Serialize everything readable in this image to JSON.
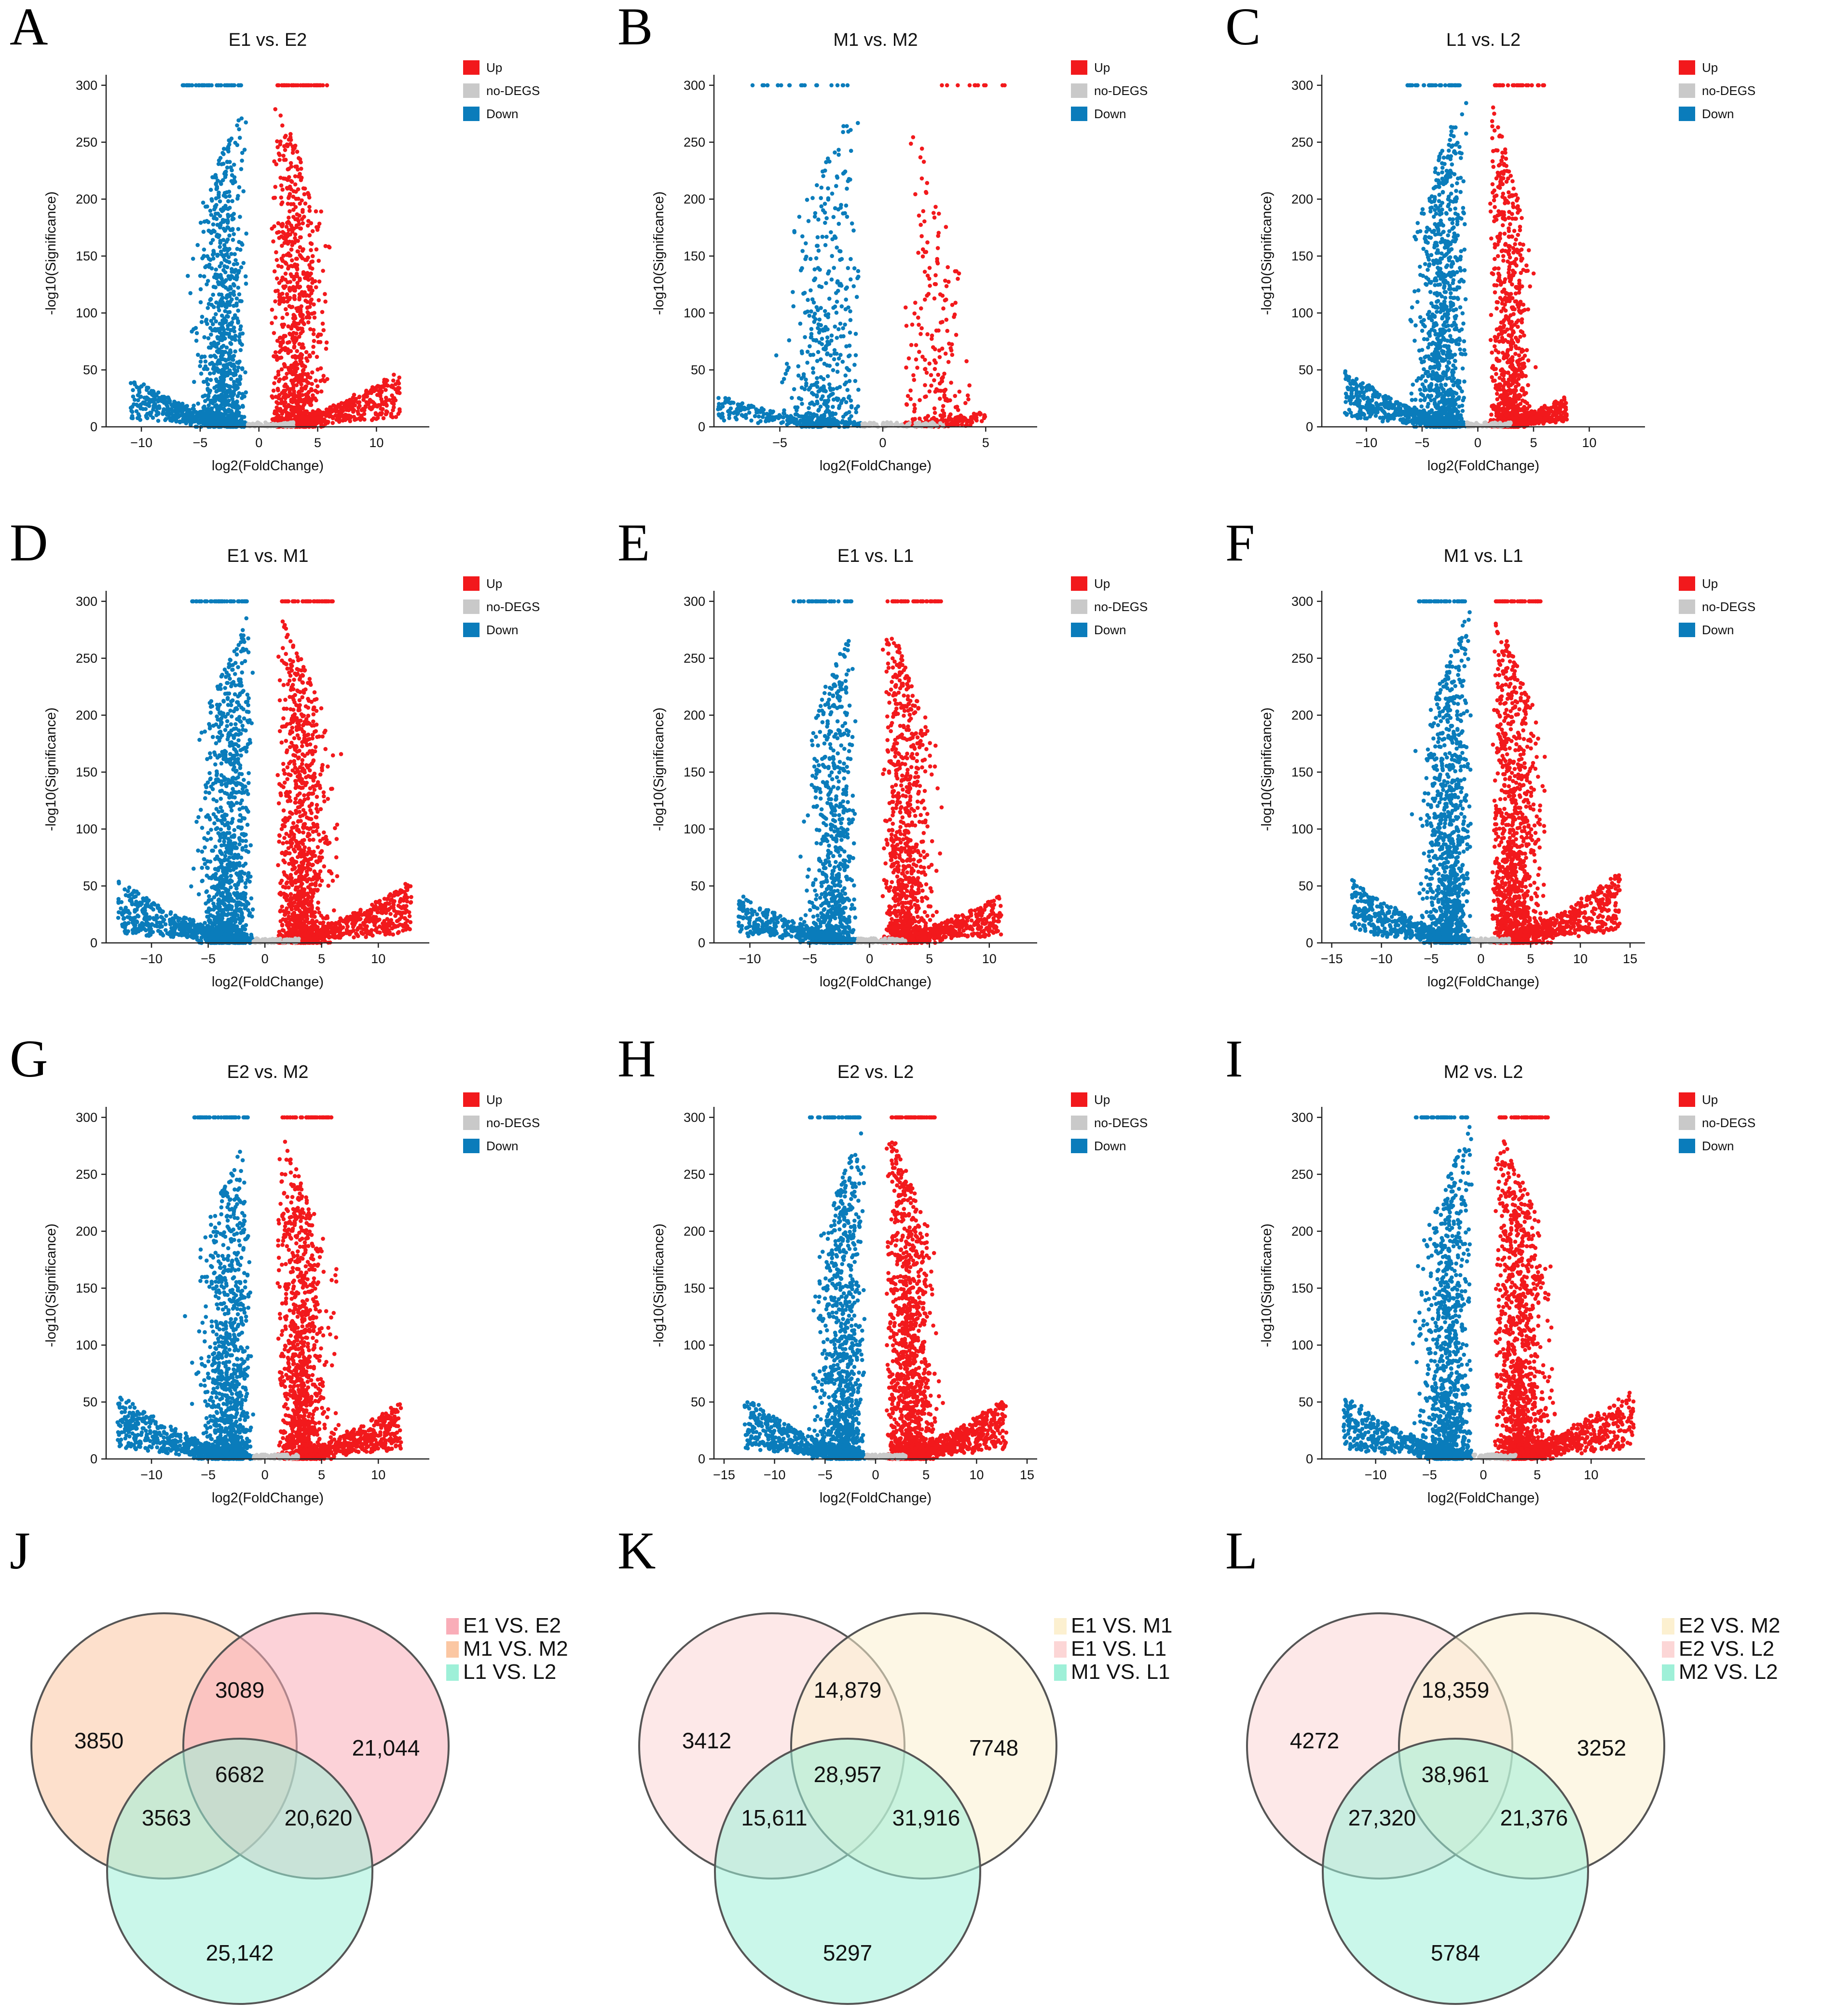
{
  "colors": {
    "up": "#f2191c",
    "down": "#0a7cbb",
    "nodeg": "#c9c9c9",
    "axis": "#222222"
  },
  "chart_data": [
    {
      "type": "scatter",
      "letter": "A",
      "title": "E1 vs. E2",
      "xlabel": "log2(FoldChange)",
      "ylabel": "-log10(Significance)",
      "xlim": [
        -13,
        14.5
      ],
      "ylim": [
        0,
        305
      ],
      "xticks": [
        -10,
        -5,
        0,
        5,
        10
      ],
      "yticks": [
        0,
        50,
        100,
        150,
        200,
        250,
        300
      ],
      "xminus": "−",
      "series": [
        {
          "name": "Up",
          "color": "#f2191c"
        },
        {
          "name": "no-DEGS",
          "color": "#c9c9c9"
        },
        {
          "name": "Down",
          "color": "#0a7cbb"
        }
      ],
      "shape": {
        "maxUp": 12,
        "maxDown": 11,
        "densUp": 1,
        "densDown": 1
      }
    },
    {
      "type": "scatter",
      "letter": "B",
      "title": "M1 vs. M2",
      "xlabel": "log2(FoldChange)",
      "ylabel": "-log10(Significance)",
      "xlim": [
        -8.2,
        7.5
      ],
      "ylim": [
        0,
        305
      ],
      "xticks": [
        -5,
        0,
        5
      ],
      "yticks": [
        0,
        50,
        100,
        150,
        200,
        250,
        300
      ],
      "series": [
        {
          "name": "Up",
          "color": "#f2191c"
        },
        {
          "name": "no-DEGS",
          "color": "#c9c9c9"
        },
        {
          "name": "Down",
          "color": "#0a7cbb"
        }
      ],
      "shape": {
        "maxUp": 5,
        "maxDown": 8,
        "densUp": 0.25,
        "densDown": 0.5
      }
    },
    {
      "type": "scatter",
      "letter": "C",
      "title": "L1 vs. L2",
      "xlabel": "log2(FoldChange)",
      "ylabel": "-log10(Significance)",
      "xlim": [
        -14,
        15
      ],
      "ylim": [
        0,
        305
      ],
      "xticks": [
        -10,
        -5,
        0,
        5,
        10
      ],
      "yticks": [
        0,
        50,
        100,
        150,
        200,
        250,
        300
      ],
      "series": [
        {
          "name": "Up",
          "color": "#f2191c"
        },
        {
          "name": "no-DEGS",
          "color": "#c9c9c9"
        },
        {
          "name": "Down",
          "color": "#0a7cbb"
        }
      ],
      "shape": {
        "maxUp": 8,
        "maxDown": 12,
        "densUp": 0.9,
        "densDown": 1.1
      }
    },
    {
      "type": "scatter",
      "letter": "D",
      "title": "E1 vs. M1",
      "xlabel": "log2(FoldChange)",
      "ylabel": "-log10(Significance)",
      "xlim": [
        -14,
        14.5
      ],
      "ylim": [
        0,
        305
      ],
      "xticks": [
        -10,
        -5,
        0,
        5,
        10
      ],
      "yticks": [
        0,
        50,
        100,
        150,
        200,
        250,
        300
      ],
      "series": [
        {
          "name": "Up",
          "color": "#f2191c"
        },
        {
          "name": "no-DEGS",
          "color": "#c9c9c9"
        },
        {
          "name": "Down",
          "color": "#0a7cbb"
        }
      ],
      "shape": {
        "maxUp": 13,
        "maxDown": 13,
        "densUp": 1.2,
        "densDown": 1.2
      }
    },
    {
      "type": "scatter",
      "letter": "E",
      "title": "E1 vs. L1",
      "xlabel": "log2(FoldChange)",
      "ylabel": "-log10(Significance)",
      "xlim": [
        -13,
        14
      ],
      "ylim": [
        0,
        305
      ],
      "xticks": [
        -10,
        -5,
        0,
        5,
        10
      ],
      "yticks": [
        0,
        50,
        100,
        150,
        200,
        250,
        300
      ],
      "series": [
        {
          "name": "Up",
          "color": "#f2191c"
        },
        {
          "name": "no-DEGS",
          "color": "#c9c9c9"
        },
        {
          "name": "Down",
          "color": "#0a7cbb"
        }
      ],
      "shape": {
        "maxUp": 11,
        "maxDown": 11,
        "densUp": 1,
        "densDown": 0.8
      }
    },
    {
      "type": "scatter",
      "letter": "F",
      "title": "M1 vs. L1",
      "xlabel": "log2(FoldChange)",
      "ylabel": "-log10(Significance)",
      "xlim": [
        -16,
        16.5
      ],
      "ylim": [
        0,
        305
      ],
      "xticks": [
        -15,
        -10,
        -5,
        0,
        5,
        10,
        15
      ],
      "yticks": [
        0,
        50,
        100,
        150,
        200,
        250,
        300
      ],
      "series": [
        {
          "name": "Up",
          "color": "#f2191c"
        },
        {
          "name": "no-DEGS",
          "color": "#c9c9c9"
        },
        {
          "name": "Down",
          "color": "#0a7cbb"
        }
      ],
      "shape": {
        "maxUp": 14,
        "maxDown": 13,
        "densUp": 1.2,
        "densDown": 1.1
      }
    },
    {
      "type": "scatter",
      "letter": "G",
      "title": "E2 vs. M2",
      "xlabel": "log2(FoldChange)",
      "ylabel": "-log10(Significance)",
      "xlim": [
        -14,
        14.5
      ],
      "ylim": [
        0,
        305
      ],
      "xticks": [
        -10,
        -5,
        0,
        5,
        10
      ],
      "yticks": [
        0,
        50,
        100,
        150,
        200,
        250,
        300
      ],
      "series": [
        {
          "name": "Up",
          "color": "#f2191c"
        },
        {
          "name": "no-DEGS",
          "color": "#c9c9c9"
        },
        {
          "name": "Down",
          "color": "#0a7cbb"
        }
      ],
      "shape": {
        "maxUp": 12,
        "maxDown": 13,
        "densUp": 1.2,
        "densDown": 1.1
      }
    },
    {
      "type": "scatter",
      "letter": "H",
      "title": "E2 vs. L2",
      "xlabel": "log2(FoldChange)",
      "ylabel": "-log10(Significance)",
      "xlim": [
        -16,
        16
      ],
      "ylim": [
        0,
        305
      ],
      "xticks": [
        -15,
        -10,
        -5,
        0,
        5,
        10,
        15
      ],
      "yticks": [
        0,
        50,
        100,
        150,
        200,
        250,
        300
      ],
      "series": [
        {
          "name": "Up",
          "color": "#f2191c"
        },
        {
          "name": "no-DEGS",
          "color": "#c9c9c9"
        },
        {
          "name": "Down",
          "color": "#0a7cbb"
        }
      ],
      "shape": {
        "maxUp": 13,
        "maxDown": 13,
        "densUp": 1.3,
        "densDown": 1.1
      }
    },
    {
      "type": "scatter",
      "letter": "I",
      "title": "M2 vs. L2",
      "xlabel": "log2(FoldChange)",
      "ylabel": "-log10(Significance)",
      "xlim": [
        -15,
        15
      ],
      "ylim": [
        0,
        305
      ],
      "xticks": [
        -10,
        -5,
        0,
        5,
        10
      ],
      "yticks": [
        0,
        50,
        100,
        150,
        200,
        250,
        300
      ],
      "series": [
        {
          "name": "Up",
          "color": "#f2191c"
        },
        {
          "name": "no-DEGS",
          "color": "#c9c9c9"
        },
        {
          "name": "Down",
          "color": "#0a7cbb"
        }
      ],
      "shape": {
        "maxUp": 14,
        "maxDown": 13,
        "densUp": 1.3,
        "densDown": 1.1
      }
    },
    {
      "type": "venn",
      "letter": "J",
      "sets": [
        {
          "name": "E1 VS. E2",
          "color": "#f9adb8"
        },
        {
          "name": "M1 VS. M2",
          "color": "#fbc7a3"
        },
        {
          "name": "L1 VS. L2",
          "color": "#9ef0d8"
        }
      ],
      "counts": {
        "left_only": "3850",
        "right_only": "21,044",
        "bottom_only": "25,142",
        "left_right": "3089",
        "left_bottom": "3563",
        "right_bottom": "20,620",
        "all": "6682"
      }
    },
    {
      "type": "venn",
      "letter": "K",
      "sets": [
        {
          "name": "E1 VS. M1",
          "color": "#fcf0d0"
        },
        {
          "name": "E1 VS. L1",
          "color": "#fcd6d6"
        },
        {
          "name": "M1 VS. L1",
          "color": "#9ef0d8"
        }
      ],
      "counts": {
        "left_only": "3412",
        "right_only": "7748",
        "bottom_only": "5297",
        "left_right": "14,879",
        "left_bottom": "15,611",
        "right_bottom": "31,916",
        "all": "28,957"
      }
    },
    {
      "type": "venn",
      "letter": "L",
      "sets": [
        {
          "name": "E2 VS. M2",
          "color": "#fcf0d0"
        },
        {
          "name": "E2 VS. L2",
          "color": "#fcd6d6"
        },
        {
          "name": "M2 VS. L2",
          "color": "#9ef0d8"
        }
      ],
      "counts": {
        "left_only": "4272",
        "right_only": "3252",
        "bottom_only": "5784",
        "left_right": "18,359",
        "left_bottom": "27,320",
        "right_bottom": "21,376",
        "all": "38,961"
      }
    }
  ]
}
